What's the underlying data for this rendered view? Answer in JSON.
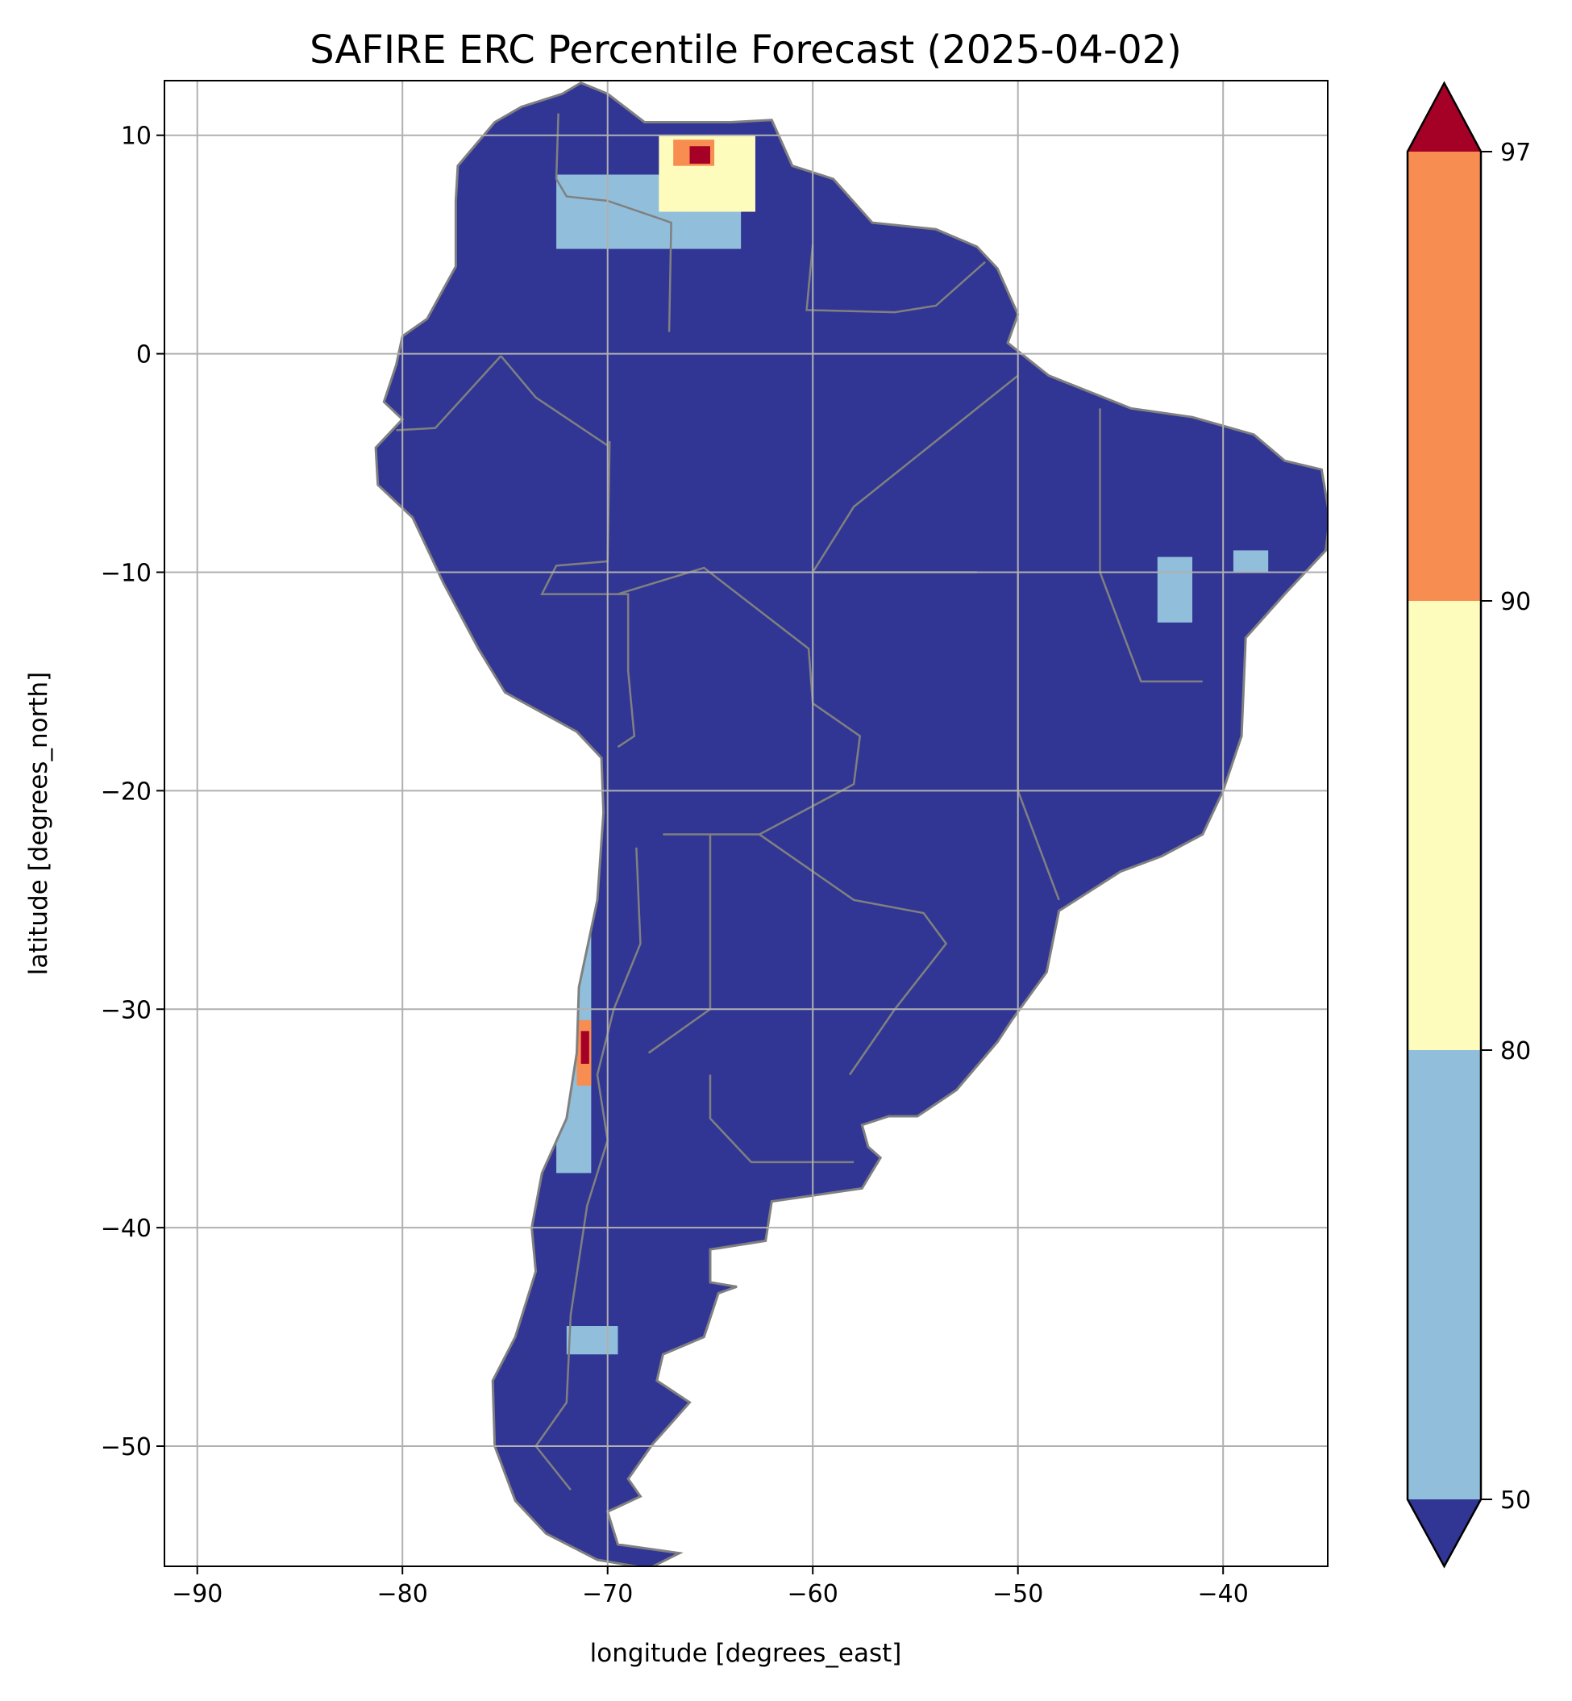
{
  "chart_data": {
    "type": "heatmap",
    "title": "SAFIRE ERC Percentile Forecast (2025-04-02)",
    "xlabel": "longitude [degrees_east]",
    "ylabel": "latitude [degrees_north]",
    "xlim": [
      -91.6,
      -34.9
    ],
    "ylim": [
      -55.5,
      12.5
    ],
    "xticks": [
      -90,
      -80,
      -70,
      -60,
      -50,
      -40
    ],
    "yticks": [
      10,
      0,
      -10,
      -20,
      -30,
      -40,
      -50
    ],
    "xtick_labels": [
      "−90",
      "−80",
      "−70",
      "−60",
      "−50",
      "−40"
    ],
    "ytick_labels": [
      "10",
      "0",
      "−10",
      "−20",
      "−30",
      "−40",
      "−50"
    ],
    "grid": true,
    "colorbar": {
      "levels": [
        50,
        80,
        90,
        97
      ],
      "tick_labels": [
        "50",
        "80",
        "90",
        "97"
      ],
      "extend": "both",
      "colors": {
        "under": "#313695",
        "50-80": "#91bfdb",
        "80-90": "#fefcbd",
        "90-97": "#f88d52",
        "over": "#a50026"
      },
      "placement": "right"
    },
    "background_value_color": "#313695",
    "border_color": "#808080",
    "regions": [
      {
        "area": "Venezuela llanos",
        "category": "50-80",
        "lon": [
          -72.5,
          -63.5
        ],
        "lat": [
          4.8,
          8.2
        ]
      },
      {
        "area": "Venezuela north",
        "category": "80-90",
        "lon": [
          -67.5,
          -62.8
        ],
        "lat": [
          6.5,
          10.0
        ]
      },
      {
        "area": "Venezuela north core",
        "category": "90-97",
        "lon": [
          -66.8,
          -64.8
        ],
        "lat": [
          8.6,
          9.8
        ]
      },
      {
        "area": "Venezuela north core",
        "category": "over",
        "lon": [
          -66.0,
          -65.0
        ],
        "lat": [
          8.7,
          9.5
        ]
      },
      {
        "area": "Northeast Brazil",
        "category": "50-80",
        "lon": [
          -43.2,
          -41.5
        ],
        "lat": [
          -12.3,
          -9.3
        ]
      },
      {
        "area": "Northeast Brazil east",
        "category": "50-80",
        "lon": [
          -39.5,
          -37.8
        ],
        "lat": [
          -10.0,
          -9.0
        ]
      },
      {
        "area": "Central Chile",
        "category": "50-80",
        "lon": [
          -72.5,
          -70.8
        ],
        "lat": [
          -37.5,
          -25.0
        ]
      },
      {
        "area": "Central Chile core",
        "category": "90-97",
        "lon": [
          -71.5,
          -70.8
        ],
        "lat": [
          -33.5,
          -30.5
        ]
      },
      {
        "area": "Central Chile core",
        "category": "over",
        "lon": [
          -71.3,
          -70.9
        ],
        "lat": [
          -32.5,
          -31.0
        ]
      },
      {
        "area": "Patagonia",
        "category": "50-80",
        "lon": [
          -72.0,
          -69.5
        ],
        "lat": [
          -45.8,
          -44.5
        ]
      }
    ]
  }
}
